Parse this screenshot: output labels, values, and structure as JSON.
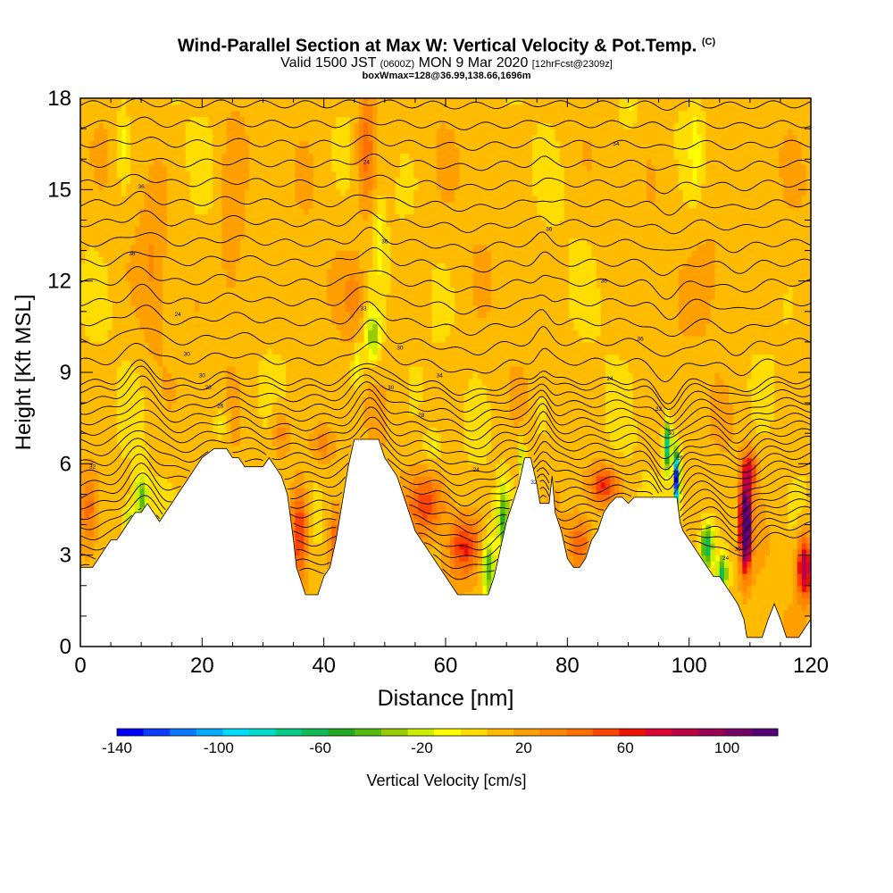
{
  "header": {
    "title": "Wind-Parallel Section at Max W: Vertical Velocity & Pot.Temp.",
    "title_suffix": "(C)",
    "valid_prefix": "Valid 1500 JST",
    "valid_utc": "(0600Z)",
    "valid_date": "MON 9 Mar 2020",
    "forecast": "[12hrFcst@2309z]",
    "box_info": "boxWmax=128@36.99,138.66,1696m"
  },
  "chart_data": {
    "type": "heatmap",
    "title": "Wind-Parallel Section at Max W: Vertical Velocity & Pot.Temp.",
    "xlabel": "Distance [nm]",
    "ylabel": "Height [Kft MSL]",
    "xlim": [
      0,
      120
    ],
    "ylim": [
      0,
      18
    ],
    "x_ticks": [
      0,
      20,
      40,
      60,
      80,
      100,
      120
    ],
    "y_ticks": [
      0,
      3,
      6,
      9,
      12,
      15,
      18
    ],
    "colorbar": {
      "label": "Vertical Velocity [cm/s]",
      "ticks": [
        -140,
        -100,
        -60,
        -20,
        20,
        60,
        100
      ],
      "range": [
        -140,
        120
      ],
      "colors": [
        "#0000ff",
        "#0a3cff",
        "#0a78ff",
        "#00aaff",
        "#00dcff",
        "#00dccc",
        "#00cc88",
        "#11bb55",
        "#22aa22",
        "#55bb11",
        "#99cc00",
        "#ccee00",
        "#ffff00",
        "#ffdd00",
        "#ffbb00",
        "#ffa000",
        "#ff8800",
        "#ff6e00",
        "#ff4400",
        "#ee1100",
        "#dd0033",
        "#bb0044",
        "#990055",
        "#770066",
        "#550077"
      ]
    },
    "terrain_nm_kft": [
      [
        0,
        2.6
      ],
      [
        2,
        2.6
      ],
      [
        3,
        2.9
      ],
      [
        4,
        3.2
      ],
      [
        5,
        3.5
      ],
      [
        6,
        3.5
      ],
      [
        7,
        3.8
      ],
      [
        8,
        4.1
      ],
      [
        9,
        4.4
      ],
      [
        10,
        4.4
      ],
      [
        11,
        4.7
      ],
      [
        12,
        4.4
      ],
      [
        13,
        4.1
      ],
      [
        14,
        4.4
      ],
      [
        15,
        4.7
      ],
      [
        16,
        5.0
      ],
      [
        17,
        5.3
      ],
      [
        18,
        5.6
      ],
      [
        19,
        5.9
      ],
      [
        20,
        6.2
      ],
      [
        22,
        6.5
      ],
      [
        24,
        6.5
      ],
      [
        25,
        6.2
      ],
      [
        26,
        6.2
      ],
      [
        27,
        5.9
      ],
      [
        30,
        5.9
      ],
      [
        31,
        6.2
      ],
      [
        32,
        5.9
      ],
      [
        33,
        5.6
      ],
      [
        34,
        5.0
      ],
      [
        35,
        3.5
      ],
      [
        35.5,
        2.6
      ],
      [
        36,
        2.3
      ],
      [
        37,
        1.7
      ],
      [
        39,
        1.7
      ],
      [
        40,
        2.3
      ],
      [
        41,
        2.6
      ],
      [
        42,
        3.5
      ],
      [
        43,
        4.7
      ],
      [
        44,
        5.9
      ],
      [
        45,
        6.8
      ],
      [
        49,
        6.8
      ],
      [
        50,
        6.2
      ],
      [
        51,
        5.9
      ],
      [
        52,
        5.6
      ],
      [
        53,
        5.0
      ],
      [
        54,
        4.4
      ],
      [
        55,
        3.8
      ],
      [
        56,
        3.5
      ],
      [
        57,
        3.2
      ],
      [
        58,
        2.9
      ],
      [
        59,
        2.6
      ],
      [
        60,
        2.3
      ],
      [
        61,
        2.0
      ],
      [
        62,
        1.7
      ],
      [
        67,
        1.7
      ],
      [
        68,
        2.3
      ],
      [
        69,
        3.2
      ],
      [
        70,
        4.1
      ],
      [
        71,
        4.7
      ],
      [
        72,
        5.3
      ],
      [
        73,
        6.2
      ],
      [
        74,
        6.2
      ],
      [
        75,
        5.3
      ],
      [
        75.5,
        4.7
      ],
      [
        77,
        4.7
      ],
      [
        77.5,
        5.6
      ],
      [
        78,
        4.4
      ],
      [
        79,
        3.8
      ],
      [
        80,
        2.9
      ],
      [
        81,
        2.6
      ],
      [
        82,
        2.6
      ],
      [
        83,
        2.9
      ],
      [
        84,
        3.5
      ],
      [
        85,
        3.8
      ],
      [
        86,
        4.4
      ],
      [
        87,
        4.7
      ],
      [
        88,
        4.9
      ],
      [
        89,
        4.9
      ],
      [
        90,
        4.7
      ],
      [
        91,
        4.9
      ],
      [
        98,
        4.9
      ],
      [
        98.5,
        4.1
      ],
      [
        99,
        3.8
      ],
      [
        100,
        3.5
      ],
      [
        101,
        3.2
      ],
      [
        102,
        2.9
      ],
      [
        103,
        2.6
      ],
      [
        104,
        2.3
      ],
      [
        105,
        2.3
      ],
      [
        106,
        2.0
      ],
      [
        107,
        1.7
      ],
      [
        108,
        1.4
      ],
      [
        109,
        0.9
      ],
      [
        109.5,
        0.3
      ],
      [
        112,
        0.3
      ],
      [
        113,
        0.9
      ],
      [
        114,
        1.4
      ],
      [
        115,
        0.9
      ],
      [
        116,
        0.3
      ],
      [
        118,
        0.3
      ],
      [
        119,
        0.6
      ],
      [
        120,
        0.9
      ]
    ]
  },
  "contour_labels": [
    "32",
    "36",
    "36",
    "24",
    "30",
    "30",
    "28",
    "26",
    "24",
    "36",
    "36",
    "34",
    "33",
    "30",
    "34",
    "30",
    "28",
    "24",
    "32",
    "36",
    "36",
    "24",
    "32",
    "30",
    "26",
    "26",
    "24",
    "30"
  ]
}
